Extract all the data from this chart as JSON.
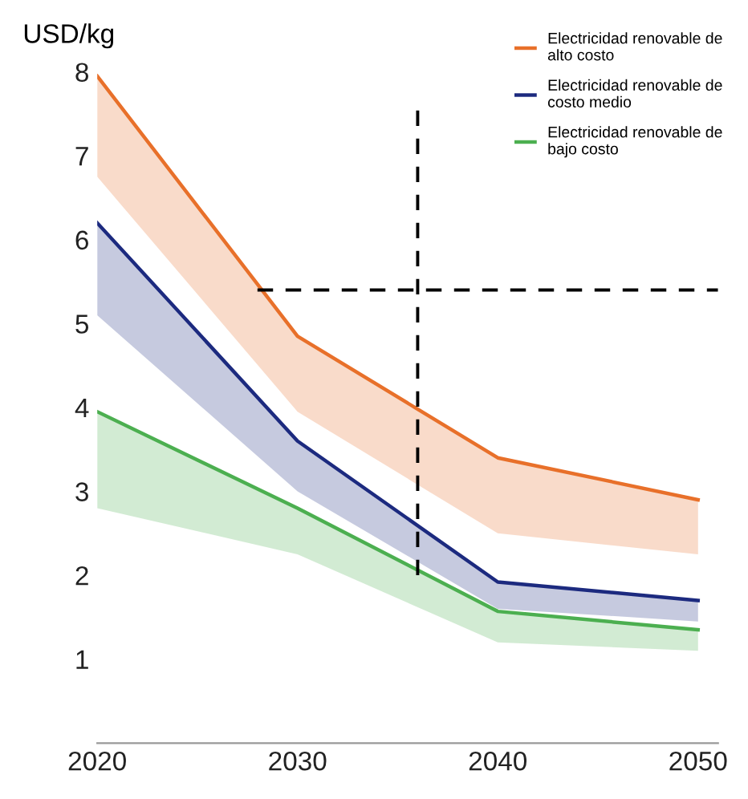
{
  "chart_data": {
    "type": "line",
    "ylabel": "USD/kg",
    "x": [
      2020,
      2030,
      2040,
      2050
    ],
    "xlim": [
      2020,
      2051
    ],
    "xticks": [
      2020,
      2030,
      2040,
      2050
    ],
    "ylim": [
      0,
      8
    ],
    "yticks": [
      1,
      2,
      3,
      4,
      5,
      6,
      7,
      8
    ],
    "grid": false,
    "legend": "top right",
    "marker": "none",
    "line_style": "solid",
    "series": [
      {
        "name": "Electricidad renovable de\nalto costo",
        "color": "#e8702a",
        "values": [
          7.95,
          4.85,
          3.4,
          2.9
        ],
        "lower": [
          6.75,
          3.95,
          2.5,
          2.25
        ],
        "upper": [
          7.95,
          4.85,
          3.4,
          2.9
        ]
      },
      {
        "name": "Electricidad renovable de\ncosto medio",
        "color": "#1c2a7f",
        "values": [
          6.2,
          3.6,
          1.92,
          1.7
        ],
        "lower": [
          5.1,
          3.0,
          1.6,
          1.45
        ],
        "upper": [
          6.2,
          3.6,
          1.92,
          1.7
        ]
      },
      {
        "name": "Electricidad renovable de\nbajo costo",
        "color": "#4caf50",
        "values": [
          3.95,
          2.8,
          1.57,
          1.35
        ],
        "lower": [
          2.8,
          2.25,
          1.2,
          1.1
        ],
        "upper": [
          3.95,
          2.8,
          1.57,
          1.35
        ]
      },
      {
        "type": "line",
        "color": "#000000",
        "line_style": "dashed",
        "x": [
          2036,
          2036
        ],
        "values": [
          2.0,
          7.6
        ]
      },
      {
        "type": "line",
        "color": "#000000",
        "line_style": "dashed",
        "x": [
          2028,
          2051
        ],
        "values": [
          5.4,
          5.4
        ]
      }
    ]
  }
}
